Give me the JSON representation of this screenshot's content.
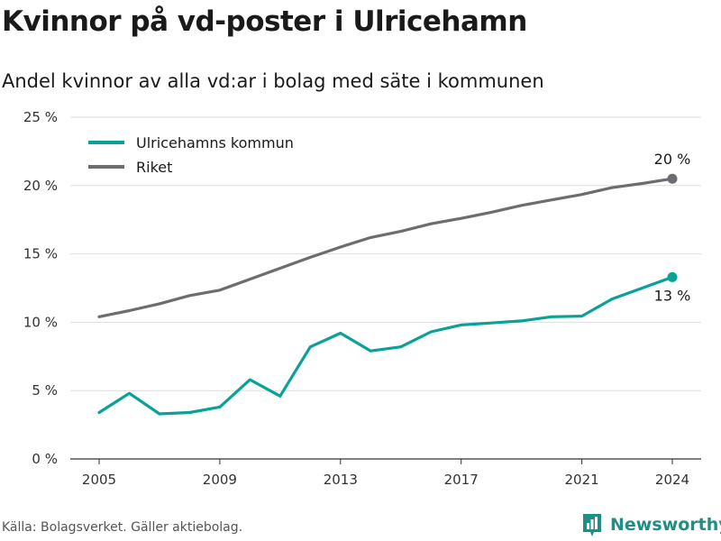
{
  "header": {
    "title": "Kvinnor på vd-poster i Ulricehamn",
    "subtitle": "Andel kvinnor av alla vd:ar i bolag med säte i kommunen"
  },
  "footer": {
    "source": "Källa: Bolagsverket. Gäller aktiebolag.",
    "brand": "Newsworthy"
  },
  "colors": {
    "ulricehamn": "#0aa197",
    "riket": "#6d6c70",
    "grid": "#dedede",
    "brand": "#1d8f84"
  },
  "chart_data": {
    "type": "line",
    "title": "Kvinnor på vd-poster i Ulricehamn",
    "subtitle": "Andel kvinnor av alla vd:ar i bolag med säte i kommunen",
    "x": [
      2005,
      2006,
      2007,
      2008,
      2009,
      2010,
      2011,
      2012,
      2013,
      2014,
      2015,
      2016,
      2017,
      2018,
      2019,
      2020,
      2021,
      2022,
      2023,
      2024
    ],
    "x_ticks": [
      "2005",
      "2009",
      "2013",
      "2017",
      "2021",
      "2024"
    ],
    "y_ticks": [
      "0 %",
      "5 %",
      "10 %",
      "15 %",
      "20 %",
      "25 %"
    ],
    "ylim": [
      0,
      25
    ],
    "grid": true,
    "legend_position": "top-left",
    "series": [
      {
        "name": "Ulricehamns kommun",
        "color": "#0aa197",
        "values": [
          3.4,
          4.8,
          3.3,
          3.4,
          3.8,
          5.8,
          4.6,
          8.2,
          9.2,
          7.9,
          8.2,
          9.3,
          9.8,
          9.95,
          10.1,
          10.4,
          10.45,
          11.7,
          12.5,
          13.3
        ],
        "end_label": "13 %"
      },
      {
        "name": "Riket",
        "color": "#6d6c70",
        "values": [
          10.4,
          10.85,
          11.35,
          11.95,
          12.35,
          13.15,
          13.95,
          14.75,
          15.5,
          16.2,
          16.65,
          17.2,
          17.6,
          18.05,
          18.55,
          18.95,
          19.35,
          19.85,
          20.15,
          20.5
        ],
        "end_label": "20 %"
      }
    ]
  }
}
